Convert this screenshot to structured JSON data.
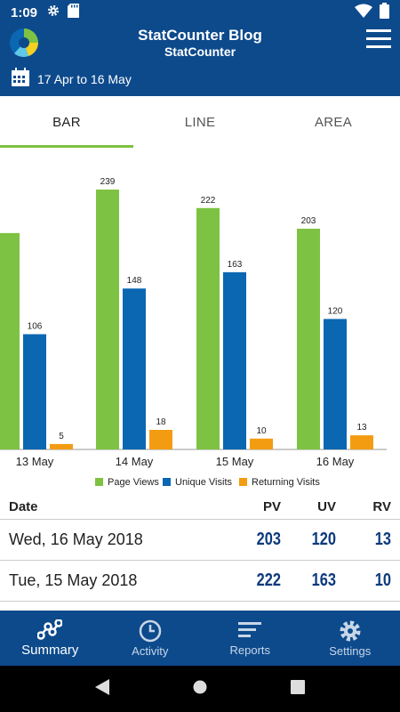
{
  "status_bar": {
    "time": "1:09",
    "icons": [
      "gear-icon",
      "sd-card-icon",
      "wifi-icon",
      "battery-icon"
    ]
  },
  "app_bar": {
    "title": "StatCounter Blog",
    "subtitle": "StatCounter",
    "date_range": "17 Apr to 16 May",
    "icons": [
      "statcounter-logo",
      "menu-icon",
      "calendar-icon"
    ]
  },
  "tabs": [
    {
      "label": "BAR",
      "active": true
    },
    {
      "label": "LINE",
      "active": false
    },
    {
      "label": "AREA",
      "active": false
    }
  ],
  "chart_data": {
    "type": "bar",
    "categories": [
      "13 May",
      "14 May",
      "15 May",
      "16 May"
    ],
    "series": [
      {
        "name": "Page Views",
        "color": "#7dc242",
        "values": [
          199,
          239,
          222,
          203
        ]
      },
      {
        "name": "Unique Visits",
        "color": "#0b67b2",
        "values": [
          106,
          148,
          163,
          120
        ]
      },
      {
        "name": "Returning Visits",
        "color": "#f39c12",
        "values": [
          5,
          18,
          10,
          13
        ]
      }
    ],
    "data_labels": [
      [
        "",
        "239",
        "222",
        "203"
      ],
      [
        "106",
        "148",
        "163",
        "120"
      ],
      [
        "5",
        "18",
        "10",
        "13"
      ]
    ],
    "ylim": [
      0,
      250
    ],
    "grid": false,
    "legend_position": "bottom"
  },
  "table": {
    "headers": {
      "date": "Date",
      "pv": "PV",
      "uv": "UV",
      "rv": "RV"
    },
    "rows": [
      {
        "date": "Wed, 16 May 2018",
        "pv": "203",
        "uv": "120",
        "rv": "13"
      },
      {
        "date": "Tue, 15 May 2018",
        "pv": "222",
        "uv": "163",
        "rv": "10"
      }
    ]
  },
  "bottom_nav": [
    {
      "label": "Summary",
      "icon": "share-nodes-icon",
      "active": true
    },
    {
      "label": "Activity",
      "icon": "clock-icon",
      "active": false
    },
    {
      "label": "Reports",
      "icon": "reports-lines-icon",
      "active": false
    },
    {
      "label": "Settings",
      "icon": "gear-icon",
      "active": false
    }
  ],
  "system_nav": [
    "back-icon",
    "home-icon",
    "recents-icon"
  ]
}
